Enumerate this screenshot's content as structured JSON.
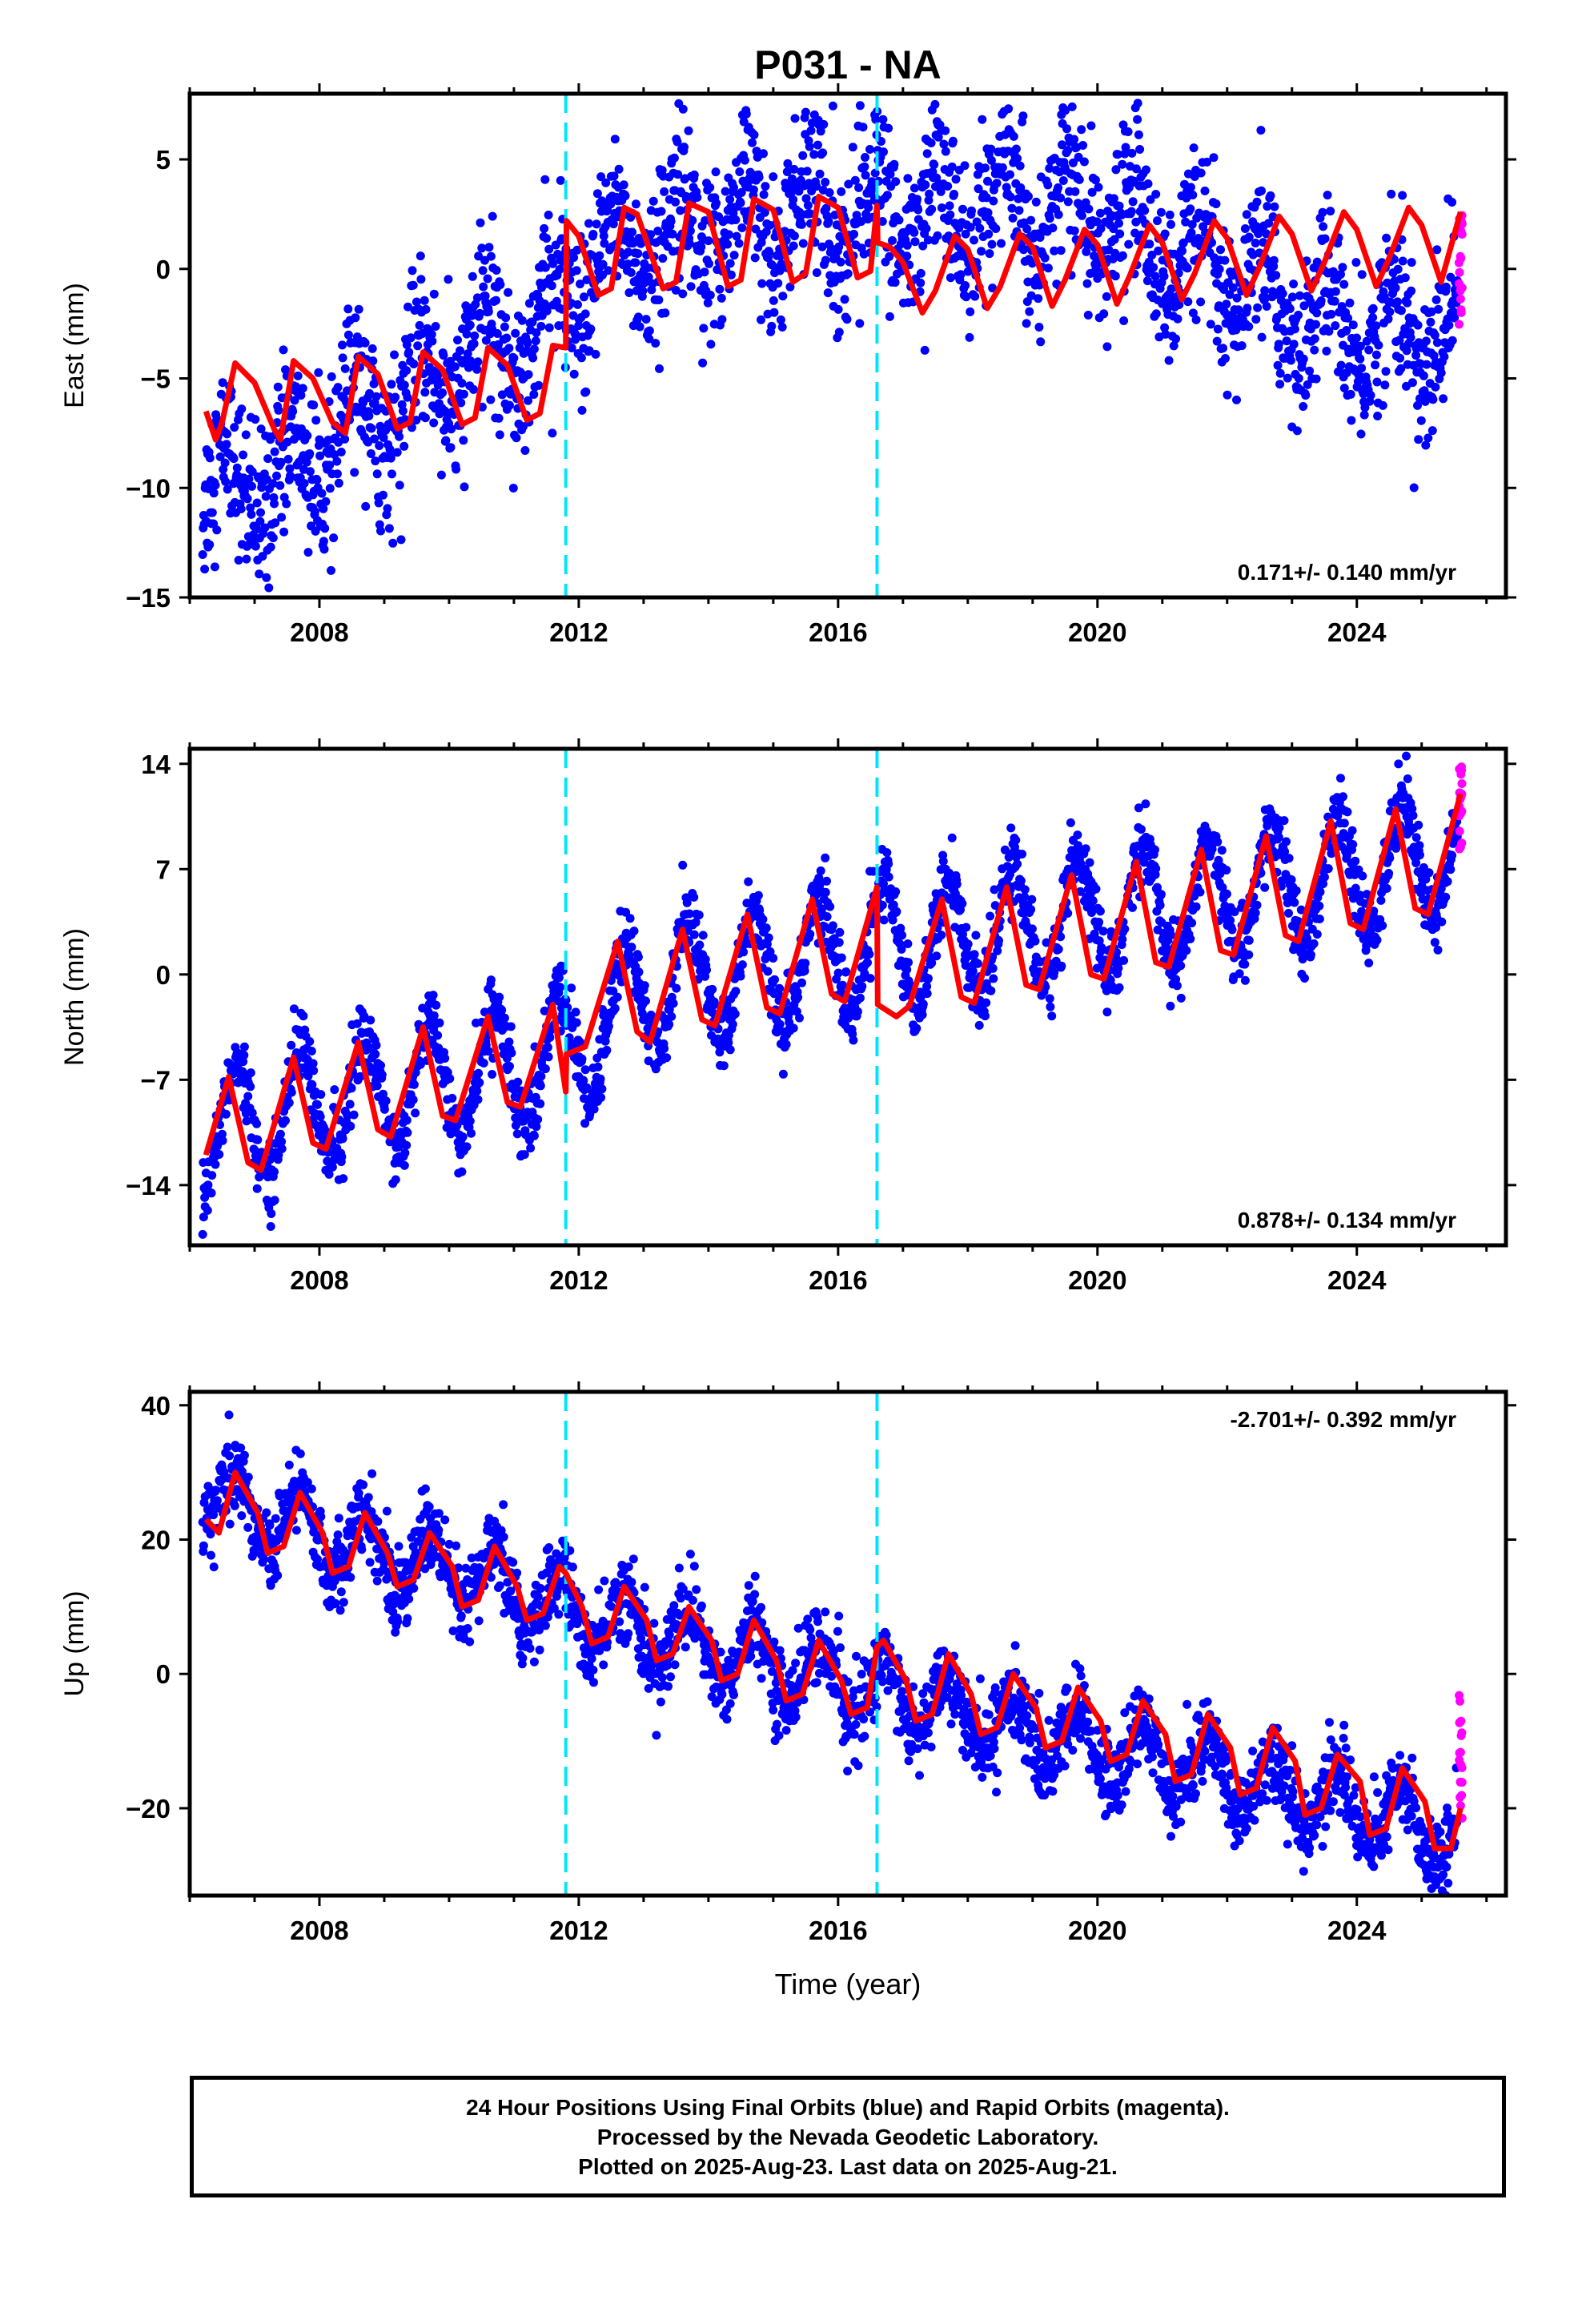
{
  "chart_data": {
    "type": "scatter",
    "title": "P031 - NA",
    "xlabel": "Time (year)",
    "xlim": [
      2006.0,
      2026.3
    ],
    "x_ticks": [
      "2008",
      "2012",
      "2016",
      "2020",
      "2024"
    ],
    "offsets": [
      2011.8,
      2016.6
    ],
    "colors": {
      "final": "#0000ff",
      "rapid": "#ff00ff",
      "model": "#ff0000",
      "offset": "#00e5ff"
    },
    "panels": [
      {
        "ylabel": "East (mm)",
        "ylim": [
          -15,
          8
        ],
        "y_ticks": [
          "−15",
          "−10",
          "−5",
          "0",
          "5"
        ],
        "y_tick_values": [
          -15,
          -10,
          -5,
          0,
          5
        ],
        "rate_text": "0.171+/- 0.140 mm/yr",
        "rate_position": "bottom-right",
        "model_curve": {
          "x": [
            2006.25,
            2006.4,
            2006.5,
            2006.7,
            2007.0,
            2007.3,
            2007.4,
            2007.6,
            2007.9,
            2008.2,
            2008.4,
            2008.6,
            2008.9,
            2009.2,
            2009.4,
            2009.6,
            2009.9,
            2010.2,
            2010.4,
            2010.6,
            2010.9,
            2011.2,
            2011.4,
            2011.6,
            2011.8,
            2011.81,
            2012.0,
            2012.3,
            2012.5,
            2012.7,
            2012.9,
            2013.3,
            2013.5,
            2013.7,
            2014.0,
            2014.3,
            2014.5,
            2014.7,
            2015.0,
            2015.3,
            2015.5,
            2015.7,
            2016.0,
            2016.3,
            2016.5,
            2016.6,
            2016.61,
            2016.8,
            2017.0,
            2017.3,
            2017.5,
            2017.8,
            2018.0,
            2018.3,
            2018.5,
            2018.8,
            2019.0,
            2019.3,
            2019.5,
            2019.8,
            2020.0,
            2020.3,
            2020.5,
            2020.8,
            2021.0,
            2021.3,
            2021.5,
            2021.8,
            2022.0,
            2022.3,
            2022.5,
            2022.8,
            2023.0,
            2023.3,
            2023.5,
            2023.8,
            2024.0,
            2024.3,
            2024.5,
            2024.8,
            2025.0,
            2025.3,
            2025.6
          ],
          "y": [
            -6.5,
            -7.8,
            -7.0,
            -4.3,
            -5.2,
            -7.3,
            -7.8,
            -4.2,
            -5.0,
            -7.0,
            -7.5,
            -4.0,
            -4.8,
            -7.3,
            -7.0,
            -3.8,
            -4.6,
            -7.1,
            -6.8,
            -3.6,
            -4.4,
            -6.9,
            -6.6,
            -3.5,
            -3.6,
            2.2,
            1.5,
            -1.2,
            -0.9,
            2.8,
            2.5,
            -0.9,
            -0.6,
            3.0,
            2.6,
            -0.8,
            -0.5,
            3.2,
            2.7,
            -0.6,
            -0.2,
            3.3,
            2.8,
            -0.4,
            -0.1,
            2.9,
            1.2,
            1.0,
            0.3,
            -2.0,
            -1.0,
            1.5,
            0.9,
            -1.8,
            -0.8,
            1.6,
            1.0,
            -1.7,
            -0.5,
            1.8,
            1.1,
            -1.6,
            -0.3,
            2.0,
            1.2,
            -1.4,
            -0.2,
            2.2,
            1.4,
            -1.2,
            0.1,
            2.4,
            1.6,
            -1.0,
            0.3,
            2.6,
            1.8,
            -0.8,
            0.5,
            2.8,
            2.0,
            -0.6,
            2.6
          ]
        },
        "scatter_trend": {
          "x": [
            2006.2,
            2007.5,
            2008.5,
            2009.5,
            2010.5,
            2011.5,
            2011.8,
            2012.5,
            2014.0,
            2016.0,
            2017.0,
            2019.0,
            2020.5,
            2022.0,
            2023.0,
            2024.0,
            2025.6
          ],
          "y": [
            -10,
            -9.5,
            -7,
            -5.5,
            -3.5,
            -2.5,
            -1.5,
            0.8,
            2.0,
            2.5,
            2.5,
            3.0,
            2.0,
            -0.5,
            -2.0,
            -2.8,
            -3.0
          ],
          "amplitude": 2.0,
          "noise": 1.8
        },
        "rapid": {
          "x": 2025.6,
          "y_range": [
            -2.7,
            3.0
          ]
        }
      },
      {
        "ylabel": "North (mm)",
        "ylim": [
          -18,
          15
        ],
        "y_ticks": [
          "−14",
          "−7",
          "0",
          "7",
          "14"
        ],
        "y_tick_values": [
          -14,
          -7,
          0,
          7,
          14
        ],
        "rate_text": "0.878+/- 0.134 mm/yr",
        "rate_position": "bottom-right",
        "model_curve": {
          "x": [
            2006.25,
            2006.6,
            2006.9,
            2007.1,
            2007.6,
            2007.9,
            2008.1,
            2008.6,
            2008.9,
            2009.1,
            2009.6,
            2009.9,
            2010.1,
            2010.6,
            2010.9,
            2011.1,
            2011.6,
            2011.8,
            2011.81,
            2012.1,
            2012.6,
            2012.9,
            2013.1,
            2013.6,
            2013.9,
            2014.1,
            2014.6,
            2014.9,
            2015.1,
            2015.6,
            2015.9,
            2016.1,
            2016.6,
            2016.61,
            2016.9,
            2017.1,
            2017.6,
            2017.9,
            2018.1,
            2018.6,
            2018.9,
            2019.1,
            2019.6,
            2019.9,
            2020.1,
            2020.6,
            2020.9,
            2021.1,
            2021.6,
            2021.9,
            2022.1,
            2022.6,
            2022.9,
            2023.1,
            2023.6,
            2023.9,
            2024.1,
            2024.6,
            2024.9,
            2025.1,
            2025.6
          ],
          "y": [
            -12.0,
            -6.8,
            -12.5,
            -13.0,
            -5.5,
            -11.2,
            -11.6,
            -4.5,
            -10.3,
            -10.8,
            -3.5,
            -9.4,
            -9.7,
            -2.8,
            -8.5,
            -8.8,
            -2.0,
            -7.8,
            -5.3,
            -4.8,
            2.2,
            -3.8,
            -4.5,
            3.0,
            -3.0,
            -3.4,
            4.0,
            -2.2,
            -2.6,
            5.0,
            -1.3,
            -1.8,
            5.8,
            -2.0,
            -2.8,
            -2.1,
            5.0,
            -1.5,
            -1.9,
            5.8,
            -0.7,
            -1.0,
            6.6,
            0.0,
            -0.3,
            7.5,
            0.8,
            0.5,
            8.3,
            1.6,
            1.3,
            9.2,
            2.6,
            2.2,
            10.2,
            3.4,
            3.0,
            11.0,
            4.4,
            4.0,
            12.0
          ]
        },
        "scatter_trend": {
          "x": [
            2006.2,
            2008.0,
            2010.0,
            2011.8,
            2013.0,
            2015.0,
            2016.6,
            2018.0,
            2020.0,
            2022.0,
            2024.0,
            2025.6
          ],
          "y": [
            -10.5,
            -8.5,
            -7.0,
            -5.5,
            -1.0,
            0.5,
            2.0,
            2.5,
            4.0,
            5.2,
            6.5,
            8.5
          ],
          "amplitude": 4.0,
          "noise": 1.2
        },
        "rapid": {
          "x": 2025.6,
          "y_range": [
            8.0,
            13.8
          ]
        }
      },
      {
        "ylabel": "Up (mm)",
        "ylim": [
          -33,
          42
        ],
        "y_ticks": [
          "−20",
          "0",
          "20",
          "40"
        ],
        "y_tick_values": [
          -20,
          0,
          20,
          40
        ],
        "rate_text": "-2.701+/- 0.392 mm/yr",
        "rate_position": "top-right",
        "model_curve": {
          "x": [
            2006.25,
            2006.45,
            2006.7,
            2007.05,
            2007.2,
            2007.45,
            2007.7,
            2008.05,
            2008.2,
            2008.45,
            2008.7,
            2009.05,
            2009.2,
            2009.45,
            2009.7,
            2010.05,
            2010.2,
            2010.45,
            2010.7,
            2011.05,
            2011.2,
            2011.45,
            2011.7,
            2011.8,
            2012.05,
            2012.2,
            2012.45,
            2012.7,
            2013.05,
            2013.2,
            2013.45,
            2013.7,
            2014.05,
            2014.2,
            2014.45,
            2014.7,
            2015.05,
            2015.2,
            2015.45,
            2015.7,
            2016.05,
            2016.2,
            2016.45,
            2016.6,
            2016.7,
            2017.05,
            2017.2,
            2017.45,
            2017.7,
            2018.05,
            2018.2,
            2018.45,
            2018.7,
            2019.05,
            2019.2,
            2019.45,
            2019.7,
            2020.05,
            2020.2,
            2020.45,
            2020.7,
            2021.05,
            2021.2,
            2021.45,
            2021.7,
            2022.05,
            2022.2,
            2022.45,
            2022.7,
            2023.05,
            2023.2,
            2023.45,
            2023.7,
            2024.05,
            2024.2,
            2024.45,
            2024.7,
            2025.05,
            2025.2,
            2025.45,
            2025.6
          ],
          "y": [
            23,
            21,
            30,
            24,
            18,
            19,
            27,
            21,
            15,
            16,
            24,
            18,
            13,
            14,
            21,
            16,
            10,
            11,
            19,
            13,
            8,
            9,
            16,
            15,
            10,
            4.5,
            5.5,
            13,
            8,
            2,
            3,
            10,
            5,
            -1,
            0,
            8,
            2,
            -4,
            -3,
            5,
            -1,
            -6,
            -5,
            4,
            5,
            -1,
            -7,
            -6,
            3,
            -3,
            -9,
            -8,
            0,
            -5,
            -11,
            -10,
            -2,
            -7,
            -13,
            -12,
            -4,
            -9,
            -16,
            -15,
            -6,
            -11,
            -18,
            -17,
            -8,
            -13,
            -21,
            -20,
            -12,
            -16,
            -24,
            -23,
            -14,
            -19,
            -26,
            -26,
            -20
          ]
        },
        "scatter_trend": {
          "x": [
            2006.2,
            2008.0,
            2010.0,
            2012.0,
            2014.0,
            2016.0,
            2018.0,
            2020.0,
            2022.0,
            2024.0,
            2025.6
          ],
          "y": [
            27,
            21,
            15,
            9,
            4,
            -1,
            -6,
            -11,
            -15,
            -20,
            -24
          ],
          "amplitude": 5.0,
          "noise": 3.0
        },
        "rapid": {
          "x": 2025.6,
          "y_range": [
            -22,
            -1
          ]
        }
      }
    ]
  },
  "footer": {
    "line1": "24 Hour Positions Using Final Orbits (blue) and Rapid Orbits (magenta).",
    "line2": "Processed by the Nevada Geodetic Laboratory.",
    "line3": "Plotted on 2025-Aug-23. Last data on 2025-Aug-21."
  }
}
